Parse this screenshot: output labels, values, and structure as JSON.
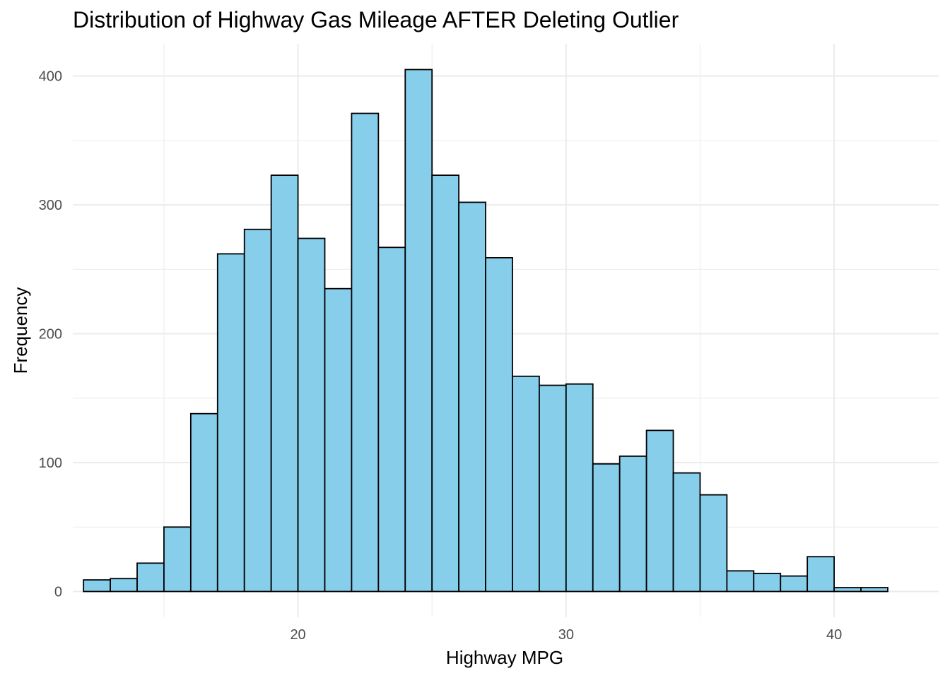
{
  "chart_data": {
    "type": "bar",
    "title": "Distribution of Highway Gas Mileage AFTER Deleting Outlier",
    "xlabel": "Highway MPG",
    "ylabel": "Frequency",
    "xlim": [
      11.6,
      43.9
    ],
    "ylim": [
      -20,
      425
    ],
    "x_ticks": [
      20,
      30,
      40
    ],
    "y_ticks": [
      0,
      100,
      200,
      300,
      400
    ],
    "bin_width": 1,
    "bin_starts": [
      12,
      13,
      14,
      15,
      16,
      17,
      18,
      19,
      20,
      21,
      22,
      23,
      24,
      25,
      26,
      27,
      28,
      29,
      30,
      31,
      32,
      33,
      34,
      35,
      36,
      37,
      38,
      39,
      40,
      41
    ],
    "values": [
      9,
      10,
      22,
      50,
      138,
      262,
      281,
      323,
      274,
      235,
      371,
      267,
      405,
      323,
      302,
      259,
      167,
      160,
      161,
      99,
      105,
      125,
      92,
      75,
      16,
      14,
      12,
      27,
      3,
      3
    ],
    "grid": true,
    "legend": "none",
    "colors": {
      "bar_fill": "#87CEEB",
      "bar_stroke": "#000000",
      "grid": "#ebebeb"
    }
  }
}
